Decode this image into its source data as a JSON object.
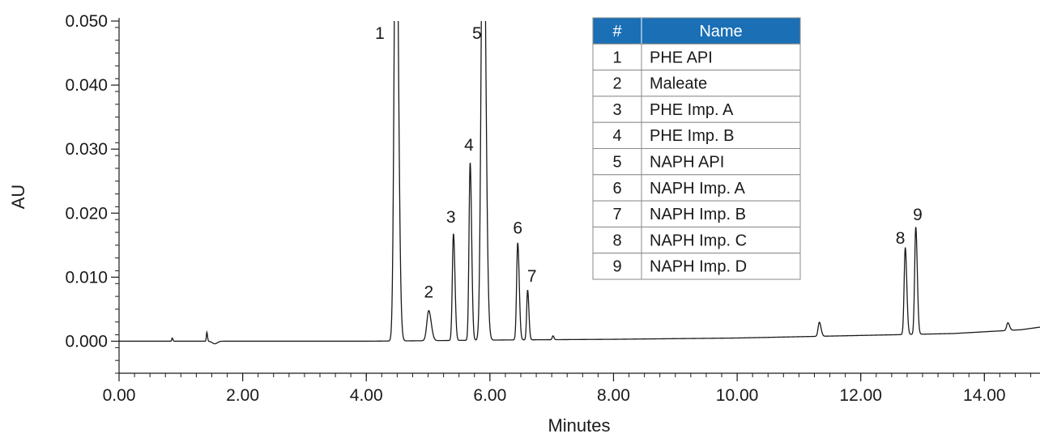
{
  "chart_data": {
    "type": "line",
    "xlabel": "Minutes",
    "ylabel": "AU",
    "xlim": [
      0.0,
      14.9
    ],
    "ylim": [
      -0.005,
      0.05
    ],
    "x_ticks": [
      0,
      2,
      4,
      6,
      8,
      10,
      12,
      14
    ],
    "x_tick_labels": [
      "0.00",
      "2.00",
      "4.00",
      "6.00",
      "8.00",
      "10.00",
      "12.00",
      "14.00"
    ],
    "y_ticks": [
      0.0,
      0.01,
      0.02,
      0.03,
      0.04,
      0.05
    ],
    "y_tick_labels": [
      "0.000",
      "0.010",
      "0.020",
      "0.030",
      "0.040",
      "0.050"
    ],
    "line_color": "#1a1a1a",
    "baseline": [
      [
        0,
        0.0
      ],
      [
        4.0,
        0.0
      ],
      [
        6.3,
        0.0002
      ],
      [
        8.0,
        0.0003
      ],
      [
        10.0,
        0.0005
      ],
      [
        12.0,
        0.0009
      ],
      [
        13.5,
        0.0012
      ],
      [
        14.6,
        0.0018
      ],
      [
        14.9,
        0.0022
      ]
    ],
    "peaks": [
      {
        "label": "1",
        "rt": 4.48,
        "height": 0.08,
        "width": 0.028
      },
      {
        "label": "2",
        "rt": 5.01,
        "height": 0.0047,
        "width": 0.03
      },
      {
        "label": "3",
        "rt": 5.41,
        "height": 0.0167,
        "width": 0.018
      },
      {
        "label": "4",
        "rt": 5.68,
        "height": 0.0278,
        "width": 0.018
      },
      {
        "label": "5",
        "rt": 5.89,
        "height": 0.08,
        "width": 0.03
      },
      {
        "label": "6",
        "rt": 6.45,
        "height": 0.0152,
        "width": 0.018
      },
      {
        "label": "7",
        "rt": 6.61,
        "height": 0.0078,
        "width": 0.015
      },
      {
        "label": "8",
        "rt": 12.72,
        "height": 0.0136,
        "width": 0.018
      },
      {
        "label": "9",
        "rt": 12.89,
        "height": 0.0168,
        "width": 0.018
      }
    ],
    "minor_peaks": [
      {
        "rt": 0.86,
        "height": 0.0005,
        "width": 0.008
      },
      {
        "rt": 1.42,
        "height": 0.0014,
        "width": 0.008
      },
      {
        "rt": 7.02,
        "height": 0.0006,
        "width": 0.012
      },
      {
        "rt": 11.33,
        "height": 0.0022,
        "width": 0.02
      },
      {
        "rt": 14.38,
        "height": 0.0012,
        "width": 0.02
      }
    ],
    "label_positions": {
      "1": [
        4.22,
        0.0472
      ],
      "2": [
        5.01,
        0.0068
      ],
      "3": [
        5.37,
        0.0185
      ],
      "4": [
        5.66,
        0.0298
      ],
      "5": [
        5.79,
        0.0472
      ],
      "6": [
        6.45,
        0.0168
      ],
      "7": [
        6.68,
        0.0093
      ],
      "8": [
        12.64,
        0.0152
      ],
      "9": [
        12.92,
        0.0189
      ]
    }
  },
  "legend_table": {
    "header_color": "#1a6fb5",
    "columns": [
      "#",
      "Name"
    ],
    "rows": [
      {
        "num": "1",
        "name": "PHE API"
      },
      {
        "num": "2",
        "name": "Maleate"
      },
      {
        "num": "3",
        "name": "PHE Imp. A"
      },
      {
        "num": "4",
        "name": "PHE Imp. B"
      },
      {
        "num": "5",
        "name": "NAPH API"
      },
      {
        "num": "6",
        "name": "NAPH Imp. A"
      },
      {
        "num": "7",
        "name": "NAPH Imp. B"
      },
      {
        "num": "8",
        "name": "NAPH Imp. C"
      },
      {
        "num": "9",
        "name": "NAPH Imp. D"
      }
    ]
  }
}
